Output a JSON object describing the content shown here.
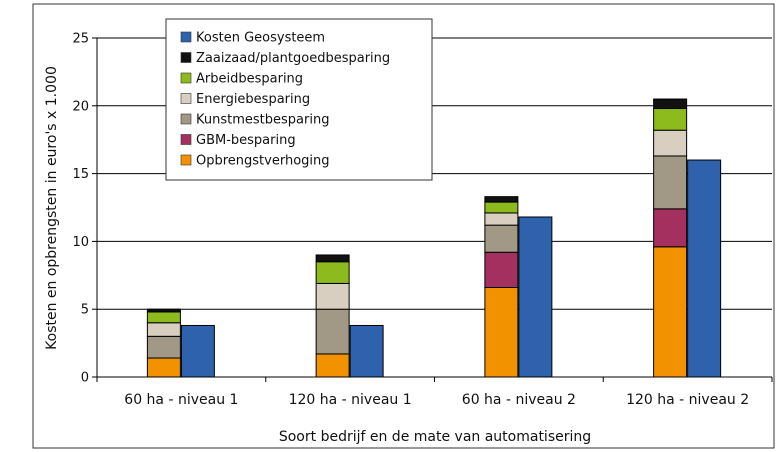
{
  "chart_data": {
    "type": "bar",
    "title": "",
    "xlabel": "Soort bedrijf en de mate van automatisering",
    "ylabel": "Kosten en opbrengsten in euro's x 1.000",
    "ylim": [
      0,
      25
    ],
    "yticks": [
      0,
      5,
      10,
      15,
      20,
      25
    ],
    "grid": true,
    "legend_position": "top-left",
    "categories": [
      "60 ha - niveau 1",
      "120 ha - niveau 1",
      "60 ha - niveau 2",
      "120 ha - niveau 2"
    ],
    "stacked_series": [
      {
        "name": "Opbrengstverhoging",
        "color": "#f39200",
        "values": [
          1.4,
          1.7,
          6.6,
          9.6
        ]
      },
      {
        "name": "GBM-besparing",
        "color": "#a3305e",
        "values": [
          0,
          0,
          2.6,
          2.8
        ]
      },
      {
        "name": "Kunstmestbesparing",
        "color": "#a19885",
        "values": [
          1.6,
          3.3,
          2.0,
          3.9
        ]
      },
      {
        "name": "Energiebesparing",
        "color": "#d8cfc0",
        "values": [
          1.0,
          1.9,
          0.9,
          1.9
        ]
      },
      {
        "name": "Arbeidbesparing",
        "color": "#8dbb1e",
        "values": [
          0.8,
          1.6,
          0.8,
          1.6
        ]
      },
      {
        "name": "Zaaizaad/plantgoedbesparing",
        "color": "#111111",
        "values": [
          0.2,
          0.5,
          0.4,
          0.7
        ]
      }
    ],
    "cost_series": {
      "name": "Kosten Geosysteem",
      "color": "#2e62ad",
      "values": [
        3.8,
        3.8,
        11.8,
        16.0
      ]
    },
    "legend_order": [
      "Kosten Geosysteem",
      "Zaaizaad/plantgoedbesparing",
      "Arbeidbesparing",
      "Energiebesparing",
      "Kunstmestbesparing",
      "GBM-besparing",
      "Opbrengstverhoging"
    ]
  }
}
